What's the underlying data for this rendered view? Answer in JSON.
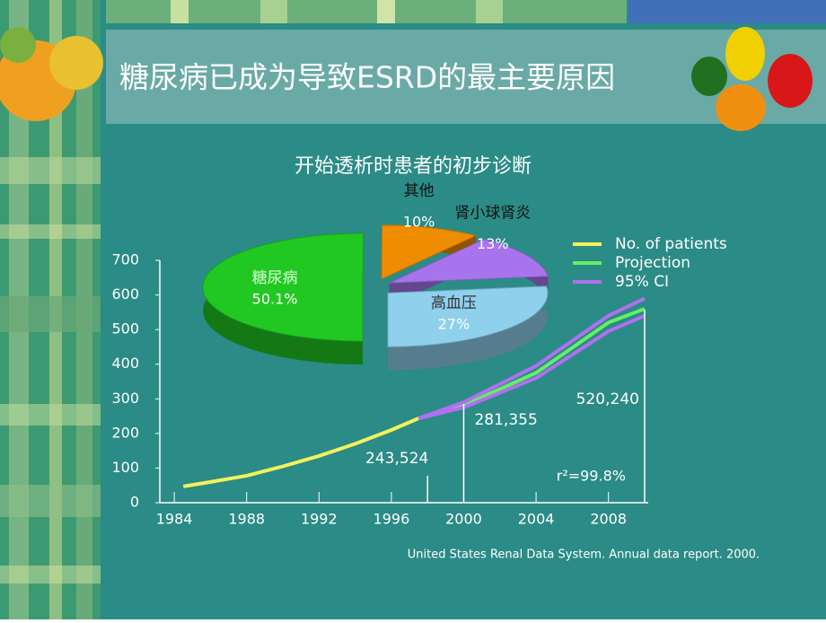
{
  "title": "糖尿病已成为导致ESRD的最主要原因",
  "source": "United States Renal Data System. Annual data report. 2000.",
  "chart_data": [
    {
      "type": "line",
      "xlim": [
        1983.2,
        2010.2
      ],
      "xticks": [
        1984,
        1988,
        1992,
        1996,
        2000,
        2004,
        2008
      ],
      "ylim": [
        0,
        700
      ],
      "yticks": [
        0,
        100,
        200,
        300,
        400,
        500,
        600,
        700
      ],
      "series": [
        {
          "name": "No. of patients",
          "color": "#f2f25a",
          "x": [
            1984.5,
            1986,
            1988,
            1990,
            1992,
            1994,
            1996,
            1997.5
          ],
          "values": [
            47,
            60,
            78,
            105,
            135,
            170,
            210,
            243.5
          ]
        },
        {
          "name": "Projection",
          "color": "#66ee66",
          "x": [
            1997.5,
            2000,
            2004,
            2008,
            2010
          ],
          "values": [
            243.5,
            281.4,
            375,
            520.2,
            560
          ]
        },
        {
          "name": "95% CI",
          "color": "#b070f0",
          "x": [
            1997.5,
            2000,
            2004,
            2008,
            2010
          ],
          "values": [
            243.5,
            290,
            395,
            540,
            590
          ],
          "lower": [
            243.5,
            275,
            360,
            495,
            540
          ]
        }
      ],
      "annotations": [
        {
          "text": "243,524",
          "x": 1998
        },
        {
          "text": "281,355",
          "x": 2000
        },
        {
          "text": "520,240",
          "x": 2010
        },
        {
          "text": "r²=99.8%"
        }
      ]
    },
    {
      "type": "pie",
      "title": "开始透析时患者的初步诊断",
      "categories": [
        "糖尿病",
        "其他",
        "肾小球肾炎",
        "高血压"
      ],
      "values": [
        50.1,
        10,
        13,
        27
      ],
      "value_labels": [
        "50.1%",
        "10%",
        "13%",
        "27%"
      ],
      "colors": [
        "#22c822",
        "#f08c00",
        "#a874ee",
        "#8fd0ec"
      ]
    }
  ]
}
